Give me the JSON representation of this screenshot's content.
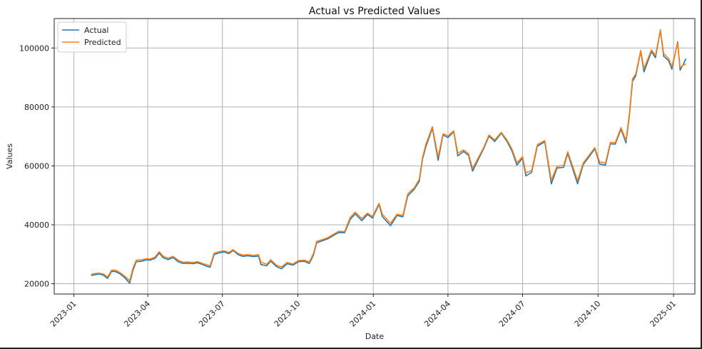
{
  "chart_data": {
    "type": "line",
    "title": "Actual vs Predicted Values",
    "xlabel": "Date",
    "ylabel": "Values",
    "xlim": [
      "2022-12-08",
      "2025-01-27"
    ],
    "ylim": [
      16500,
      110000
    ],
    "x_ticks": [
      "2023-01",
      "2023-04",
      "2023-07",
      "2023-10",
      "2024-01",
      "2024-04",
      "2024-07",
      "2024-10",
      "2025-01"
    ],
    "y_ticks": [
      20000,
      40000,
      60000,
      80000,
      100000
    ],
    "y_tick_labels": [
      "20000",
      "40000",
      "60000",
      "80000",
      "100000"
    ],
    "grid": true,
    "legend_position": "top-left",
    "series": [
      {
        "name": "Actual",
        "color": "#1f77b4",
        "points": [
          [
            "2023-01-22",
            22800
          ],
          [
            "2023-01-27",
            23100
          ],
          [
            "2023-02-01",
            23300
          ],
          [
            "2023-02-06",
            22900
          ],
          [
            "2023-02-11",
            21800
          ],
          [
            "2023-02-16",
            24200
          ],
          [
            "2023-02-21",
            24100
          ],
          [
            "2023-02-26",
            23400
          ],
          [
            "2023-03-03",
            22300
          ],
          [
            "2023-03-10",
            20200
          ],
          [
            "2023-03-14",
            24600
          ],
          [
            "2023-03-18",
            27500
          ],
          [
            "2023-03-24",
            27600
          ],
          [
            "2023-03-30",
            28100
          ],
          [
            "2023-04-04",
            28000
          ],
          [
            "2023-04-10",
            28600
          ],
          [
            "2023-04-15",
            30400
          ],
          [
            "2023-04-20",
            28800
          ],
          [
            "2023-04-26",
            28200
          ],
          [
            "2023-05-02",
            28900
          ],
          [
            "2023-05-08",
            27500
          ],
          [
            "2023-05-14",
            26900
          ],
          [
            "2023-05-20",
            27000
          ],
          [
            "2023-05-26",
            26800
          ],
          [
            "2023-06-01",
            27100
          ],
          [
            "2023-06-07",
            26500
          ],
          [
            "2023-06-12",
            25900
          ],
          [
            "2023-06-16",
            25600
          ],
          [
            "2023-06-21",
            29900
          ],
          [
            "2023-06-27",
            30500
          ],
          [
            "2023-07-03",
            30800
          ],
          [
            "2023-07-09",
            30200
          ],
          [
            "2023-07-14",
            31300
          ],
          [
            "2023-07-20",
            29900
          ],
          [
            "2023-07-26",
            29300
          ],
          [
            "2023-08-01",
            29500
          ],
          [
            "2023-08-08",
            29200
          ],
          [
            "2023-08-14",
            29400
          ],
          [
            "2023-08-17",
            26500
          ],
          [
            "2023-08-24",
            26100
          ],
          [
            "2023-08-29",
            27700
          ],
          [
            "2023-09-05",
            25800
          ],
          [
            "2023-09-11",
            25100
          ],
          [
            "2023-09-18",
            26800
          ],
          [
            "2023-09-25",
            26300
          ],
          [
            "2023-10-02",
            27500
          ],
          [
            "2023-10-09",
            27600
          ],
          [
            "2023-10-15",
            26900
          ],
          [
            "2023-10-20",
            29700
          ],
          [
            "2023-10-24",
            33900
          ],
          [
            "2023-10-31",
            34600
          ],
          [
            "2023-11-07",
            35300
          ],
          [
            "2023-11-14",
            36500
          ],
          [
            "2023-11-20",
            37400
          ],
          [
            "2023-11-27",
            37300
          ],
          [
            "2023-12-04",
            41900
          ],
          [
            "2023-12-10",
            43700
          ],
          [
            "2023-12-18",
            41400
          ],
          [
            "2023-12-25",
            43500
          ],
          [
            "2023-12-31",
            42300
          ],
          [
            "2024-01-08",
            46900
          ],
          [
            "2024-01-12",
            42800
          ],
          [
            "2024-01-22",
            39700
          ],
          [
            "2024-01-30",
            43200
          ],
          [
            "2024-02-06",
            42700
          ],
          [
            "2024-02-12",
            49800
          ],
          [
            "2024-02-20",
            52100
          ],
          [
            "2024-02-26",
            54800
          ],
          [
            "2024-03-01",
            62300
          ],
          [
            "2024-03-05",
            66500
          ],
          [
            "2024-03-13",
            72800
          ],
          [
            "2024-03-20",
            61900
          ],
          [
            "2024-03-26",
            70500
          ],
          [
            "2024-04-01",
            69600
          ],
          [
            "2024-04-08",
            71600
          ],
          [
            "2024-04-13",
            63400
          ],
          [
            "2024-04-20",
            64900
          ],
          [
            "2024-04-26",
            63600
          ],
          [
            "2024-05-01",
            58200
          ],
          [
            "2024-05-08",
            62200
          ],
          [
            "2024-05-15",
            66100
          ],
          [
            "2024-05-21",
            70100
          ],
          [
            "2024-05-28",
            68300
          ],
          [
            "2024-06-05",
            71100
          ],
          [
            "2024-06-12",
            68300
          ],
          [
            "2024-06-18",
            65100
          ],
          [
            "2024-06-24",
            60300
          ],
          [
            "2024-07-01",
            62600
          ],
          [
            "2024-07-05",
            56600
          ],
          [
            "2024-07-12",
            57800
          ],
          [
            "2024-07-19",
            66700
          ],
          [
            "2024-07-28",
            68200
          ],
          [
            "2024-08-05",
            53900
          ],
          [
            "2024-08-12",
            59300
          ],
          [
            "2024-08-20",
            59500
          ],
          [
            "2024-08-25",
            64200
          ],
          [
            "2024-09-06",
            53900
          ],
          [
            "2024-09-13",
            60500
          ],
          [
            "2024-09-20",
            63100
          ],
          [
            "2024-09-27",
            65800
          ],
          [
            "2024-10-03",
            60600
          ],
          [
            "2024-10-10",
            60300
          ],
          [
            "2024-10-16",
            67500
          ],
          [
            "2024-10-22",
            67400
          ],
          [
            "2024-10-29",
            72500
          ],
          [
            "2024-11-04",
            67800
          ],
          [
            "2024-11-08",
            76500
          ],
          [
            "2024-11-12",
            88700
          ],
          [
            "2024-11-16",
            90600
          ],
          [
            "2024-11-22",
            98900
          ],
          [
            "2024-11-26",
            91900
          ],
          [
            "2024-12-05",
            98800
          ],
          [
            "2024-12-10",
            96700
          ],
          [
            "2024-12-16",
            106000
          ],
          [
            "2024-12-20",
            97200
          ],
          [
            "2024-12-26",
            95700
          ],
          [
            "2024-12-30",
            92800
          ],
          [
            "2025-01-06",
            102100
          ],
          [
            "2025-01-09",
            92500
          ],
          [
            "2025-01-13",
            94500
          ],
          [
            "2025-01-16",
            96400
          ]
        ]
      },
      {
        "name": "Predicted",
        "color": "#ff7f0e",
        "points": [
          [
            "2023-01-22",
            23200
          ],
          [
            "2023-01-27",
            23500
          ],
          [
            "2023-02-01",
            23600
          ],
          [
            "2023-02-06",
            23300
          ],
          [
            "2023-02-11",
            22300
          ],
          [
            "2023-02-16",
            24600
          ],
          [
            "2023-02-21",
            24600
          ],
          [
            "2023-02-26",
            23800
          ],
          [
            "2023-03-03",
            22800
          ],
          [
            "2023-03-10",
            21000
          ],
          [
            "2023-03-14",
            25300
          ],
          [
            "2023-03-18",
            28000
          ],
          [
            "2023-03-24",
            28100
          ],
          [
            "2023-03-30",
            28500
          ],
          [
            "2023-04-04",
            28400
          ],
          [
            "2023-04-10",
            29100
          ],
          [
            "2023-04-15",
            30900
          ],
          [
            "2023-04-20",
            29300
          ],
          [
            "2023-04-26",
            28700
          ],
          [
            "2023-05-02",
            29300
          ],
          [
            "2023-05-08",
            28000
          ],
          [
            "2023-05-14",
            27300
          ],
          [
            "2023-05-20",
            27400
          ],
          [
            "2023-05-26",
            27200
          ],
          [
            "2023-06-01",
            27500
          ],
          [
            "2023-06-07",
            26900
          ],
          [
            "2023-06-12",
            26400
          ],
          [
            "2023-06-16",
            26100
          ],
          [
            "2023-06-21",
            30400
          ],
          [
            "2023-06-27",
            30900
          ],
          [
            "2023-07-03",
            31200
          ],
          [
            "2023-07-09",
            30600
          ],
          [
            "2023-07-14",
            31600
          ],
          [
            "2023-07-20",
            30300
          ],
          [
            "2023-07-26",
            29700
          ],
          [
            "2023-08-01",
            29900
          ],
          [
            "2023-08-08",
            29600
          ],
          [
            "2023-08-14",
            29900
          ],
          [
            "2023-08-17",
            27300
          ],
          [
            "2023-08-24",
            26600
          ],
          [
            "2023-08-29",
            28100
          ],
          [
            "2023-09-05",
            26300
          ],
          [
            "2023-09-11",
            25700
          ],
          [
            "2023-09-18",
            27200
          ],
          [
            "2023-09-25",
            26700
          ],
          [
            "2023-10-02",
            27900
          ],
          [
            "2023-10-09",
            28000
          ],
          [
            "2023-10-15",
            27400
          ],
          [
            "2023-10-20",
            30200
          ],
          [
            "2023-10-24",
            34400
          ],
          [
            "2023-10-31",
            35000
          ],
          [
            "2023-11-07",
            35700
          ],
          [
            "2023-11-14",
            36900
          ],
          [
            "2023-11-20",
            37800
          ],
          [
            "2023-11-27",
            37700
          ],
          [
            "2023-12-04",
            42600
          ],
          [
            "2023-12-10",
            44300
          ],
          [
            "2023-12-18",
            42100
          ],
          [
            "2023-12-25",
            44000
          ],
          [
            "2023-12-31",
            42800
          ],
          [
            "2024-01-08",
            47300
          ],
          [
            "2024-01-12",
            43600
          ],
          [
            "2024-01-22",
            40500
          ],
          [
            "2024-01-30",
            43600
          ],
          [
            "2024-02-06",
            43200
          ],
          [
            "2024-02-12",
            50500
          ],
          [
            "2024-02-20",
            52600
          ],
          [
            "2024-02-26",
            55500
          ],
          [
            "2024-03-01",
            62900
          ],
          [
            "2024-03-05",
            67300
          ],
          [
            "2024-03-13",
            73300
          ],
          [
            "2024-03-20",
            63000
          ],
          [
            "2024-03-26",
            70900
          ],
          [
            "2024-04-01",
            70200
          ],
          [
            "2024-04-08",
            71900
          ],
          [
            "2024-04-13",
            64300
          ],
          [
            "2024-04-20",
            65400
          ],
          [
            "2024-04-26",
            64200
          ],
          [
            "2024-05-01",
            59100
          ],
          [
            "2024-05-08",
            62800
          ],
          [
            "2024-05-15",
            66500
          ],
          [
            "2024-05-21",
            70500
          ],
          [
            "2024-05-28",
            68800
          ],
          [
            "2024-06-05",
            71400
          ],
          [
            "2024-06-12",
            68800
          ],
          [
            "2024-06-18",
            65700
          ],
          [
            "2024-06-24",
            61100
          ],
          [
            "2024-07-01",
            63100
          ],
          [
            "2024-07-05",
            57600
          ],
          [
            "2024-07-12",
            58400
          ],
          [
            "2024-07-19",
            67200
          ],
          [
            "2024-07-28",
            68600
          ],
          [
            "2024-08-05",
            55100
          ],
          [
            "2024-08-12",
            59900
          ],
          [
            "2024-08-20",
            60100
          ],
          [
            "2024-08-25",
            64800
          ],
          [
            "2024-09-06",
            55000
          ],
          [
            "2024-09-13",
            61000
          ],
          [
            "2024-09-20",
            63600
          ],
          [
            "2024-09-27",
            66200
          ],
          [
            "2024-10-03",
            61300
          ],
          [
            "2024-10-10",
            61000
          ],
          [
            "2024-10-16",
            68000
          ],
          [
            "2024-10-22",
            67900
          ],
          [
            "2024-10-29",
            73000
          ],
          [
            "2024-11-04",
            68600
          ],
          [
            "2024-11-08",
            77300
          ],
          [
            "2024-11-12",
            89500
          ],
          [
            "2024-11-16",
            91200
          ],
          [
            "2024-11-22",
            99200
          ],
          [
            "2024-11-26",
            93000
          ],
          [
            "2024-12-05",
            99400
          ],
          [
            "2024-12-10",
            97400
          ],
          [
            "2024-12-16",
            106200
          ],
          [
            "2024-12-20",
            98100
          ],
          [
            "2024-12-26",
            96400
          ],
          [
            "2024-12-30",
            93600
          ],
          [
            "2025-01-06",
            101800
          ],
          [
            "2025-01-09",
            93300
          ],
          [
            "2025-01-13",
            94200
          ],
          [
            "2025-01-16",
            94600
          ]
        ]
      }
    ]
  }
}
